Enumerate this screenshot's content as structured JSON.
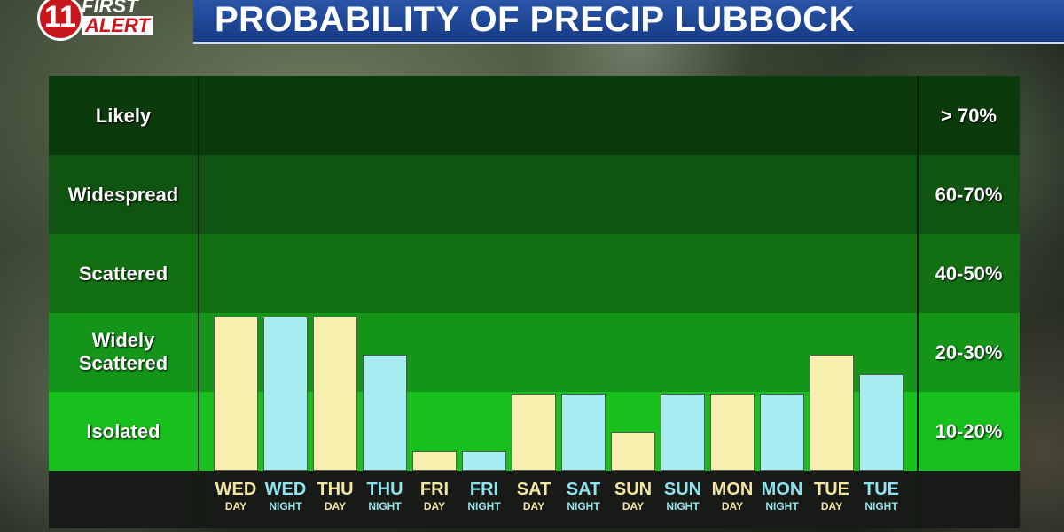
{
  "header": {
    "logo_number": "11",
    "logo_line1": "FIRST",
    "logo_line2": "ALERT",
    "title": "PROBABILITY OF PRECIP LUBBOCK"
  },
  "chart_data": {
    "type": "bar",
    "title": "PROBABILITY OF PRECIP LUBBOCK",
    "ylabel": "",
    "ylim": [
      0,
      100
    ],
    "bands": [
      {
        "label": "Likely",
        "range": "> 70%",
        "color": "#0b3a0b"
      },
      {
        "label": "Widespread",
        "range": "60-70%",
        "color": "#0f5410"
      },
      {
        "label": "Scattered",
        "range": "40-50%",
        "color": "#127012"
      },
      {
        "label": "Widely Scattered",
        "range": "20-30%",
        "color": "#14951a"
      },
      {
        "label": "Isolated",
        "range": "10-20%",
        "color": "#18c01e"
      }
    ],
    "categories": [
      {
        "day": "WED",
        "period": "DAY",
        "value": 20
      },
      {
        "day": "WED",
        "period": "NIGHT",
        "value": 20
      },
      {
        "day": "THU",
        "period": "DAY",
        "value": 20
      },
      {
        "day": "THU",
        "period": "NIGHT",
        "value": 15
      },
      {
        "day": "FRI",
        "period": "DAY",
        "value": 2.5
      },
      {
        "day": "FRI",
        "period": "NIGHT",
        "value": 2.5
      },
      {
        "day": "SAT",
        "period": "DAY",
        "value": 10
      },
      {
        "day": "SAT",
        "period": "NIGHT",
        "value": 10
      },
      {
        "day": "SUN",
        "period": "DAY",
        "value": 5
      },
      {
        "day": "SUN",
        "period": "NIGHT",
        "value": 10
      },
      {
        "day": "MON",
        "period": "DAY",
        "value": 10
      },
      {
        "day": "MON",
        "period": "NIGHT",
        "value": 10
      },
      {
        "day": "TUE",
        "period": "DAY",
        "value": 15
      },
      {
        "day": "TUE",
        "period": "NIGHT",
        "value": 12.5
      }
    ],
    "colors": {
      "day": "#f9f0b0",
      "night": "#a6ecf0"
    },
    "grid": false,
    "legend": "none"
  }
}
